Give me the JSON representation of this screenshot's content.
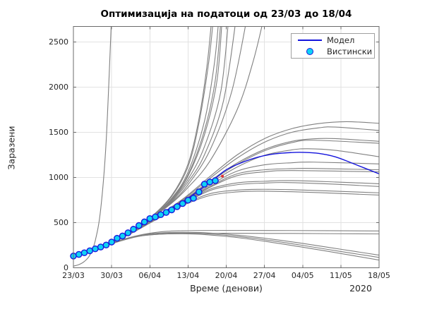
{
  "title": "Оптимизација на податоци од 23/03 до 18/04",
  "axes": {
    "xlabel": "Време (денови)",
    "ylabel": "Заразени",
    "year_label": "2020"
  },
  "legend": {
    "items": [
      {
        "label": "Модел",
        "swatch": "line"
      },
      {
        "label": "Вистински",
        "swatch": "marker"
      }
    ]
  },
  "colors": {
    "model_line": "#1414dd",
    "actual_fill": "#0fd2f5",
    "actual_edge": "#1a1add",
    "ensemble": "#808080",
    "grid": "#e2e2e2",
    "axis": "#6b6b6b",
    "text": "#262626",
    "highlight": "#e03131",
    "background": "#ffffff"
  },
  "chart_data": {
    "type": "line",
    "title": "Оптимизација на податоци од 23/03 до 18/04",
    "xlabel": "Време (денови)",
    "ylabel": "Заразени",
    "grid": true,
    "legend_position": "top-right",
    "x_unit": "days since 23/03/2020",
    "xlim_days": [
      0,
      56
    ],
    "ylim": [
      0,
      2670
    ],
    "x_ticks": [
      {
        "day": 0,
        "label": "23/03"
      },
      {
        "day": 7,
        "label": "30/03"
      },
      {
        "day": 14,
        "label": "06/04"
      },
      {
        "day": 21,
        "label": "13/04"
      },
      {
        "day": 28,
        "label": "20/04"
      },
      {
        "day": 35,
        "label": "27/04"
      },
      {
        "day": 42,
        "label": "04/05"
      },
      {
        "day": 49,
        "label": "11/05"
      },
      {
        "day": 56,
        "label": "18/05"
      }
    ],
    "y_ticks": [
      0,
      500,
      1000,
      1500,
      2000,
      2500
    ],
    "actual_points": {
      "name": "Вистински",
      "x_days": [
        0,
        1,
        2,
        3,
        4,
        5,
        6,
        7,
        8,
        9,
        10,
        11,
        12,
        13,
        14,
        15,
        16,
        17,
        18,
        19,
        20,
        21,
        22,
        23,
        24,
        25,
        26
      ],
      "values": [
        130,
        148,
        166,
        188,
        210,
        230,
        252,
        285,
        327,
        352,
        387,
        427,
        468,
        508,
        545,
        563,
        588,
        613,
        641,
        677,
        711,
        748,
        770,
        840,
        926,
        950,
        965
      ]
    },
    "model_series": {
      "name": "Модел",
      "points": [
        [
          0,
          130
        ],
        [
          4,
          205
        ],
        [
          8,
          320
        ],
        [
          12,
          455
        ],
        [
          16,
          600
        ],
        [
          20,
          730
        ],
        [
          23,
          855
        ],
        [
          26,
          990
        ],
        [
          28,
          1085
        ],
        [
          31,
          1168
        ],
        [
          34,
          1228
        ],
        [
          37,
          1262
        ],
        [
          40,
          1276
        ],
        [
          42,
          1278
        ],
        [
          45,
          1266
        ],
        [
          48,
          1228
        ],
        [
          51,
          1160
        ],
        [
          56,
          1040
        ]
      ]
    },
    "highlight_point": {
      "day": 27.3,
      "value": 1015
    },
    "ensemble_curves": [
      [
        [
          0,
          18
        ],
        [
          1,
          35
        ],
        [
          2,
          70
        ],
        [
          3,
          140
        ],
        [
          4,
          300
        ],
        [
          5,
          650
        ],
        [
          6,
          1400
        ],
        [
          7,
          2800
        ]
      ],
      [
        [
          0,
          130
        ],
        [
          5,
          232
        ],
        [
          10,
          375
        ],
        [
          14,
          550
        ],
        [
          18,
          800
        ],
        [
          21,
          1150
        ],
        [
          23,
          1650
        ],
        [
          24.5,
          2250
        ],
        [
          25.4,
          2800
        ]
      ],
      [
        [
          0,
          130
        ],
        [
          5,
          231
        ],
        [
          10,
          373
        ],
        [
          14,
          548
        ],
        [
          18,
          790
        ],
        [
          21,
          1120
        ],
        [
          23,
          1600
        ],
        [
          24.8,
          2280
        ],
        [
          25.7,
          2800
        ]
      ],
      [
        [
          0,
          130
        ],
        [
          5,
          230
        ],
        [
          10,
          371
        ],
        [
          14,
          545
        ],
        [
          18,
          770
        ],
        [
          21,
          1060
        ],
        [
          24,
          1620
        ],
        [
          25.8,
          2250
        ],
        [
          26.7,
          2800
        ]
      ],
      [
        [
          0,
          130
        ],
        [
          5,
          230
        ],
        [
          10,
          370
        ],
        [
          14,
          543
        ],
        [
          18,
          760
        ],
        [
          21,
          1030
        ],
        [
          24,
          1520
        ],
        [
          26,
          2080
        ],
        [
          27.1,
          2800
        ]
      ],
      [
        [
          0,
          130
        ],
        [
          5,
          229
        ],
        [
          10,
          369
        ],
        [
          14,
          542
        ],
        [
          18,
          755
        ],
        [
          21,
          1015
        ],
        [
          24,
          1470
        ],
        [
          26.3,
          2070
        ],
        [
          27.3,
          2800
        ]
      ],
      [
        [
          0,
          130
        ],
        [
          5,
          229
        ],
        [
          10,
          368
        ],
        [
          14,
          540
        ],
        [
          18,
          745
        ],
        [
          21,
          980
        ],
        [
          24,
          1340
        ],
        [
          27,
          1950
        ],
        [
          28.5,
          2800
        ]
      ],
      [
        [
          0,
          130
        ],
        [
          5,
          228
        ],
        [
          10,
          367
        ],
        [
          14,
          538
        ],
        [
          18,
          735
        ],
        [
          21,
          950
        ],
        [
          24,
          1250
        ],
        [
          27.5,
          1850
        ],
        [
          29.9,
          2800
        ]
      ],
      [
        [
          0,
          130
        ],
        [
          5,
          228
        ],
        [
          10,
          366
        ],
        [
          14,
          536
        ],
        [
          18,
          725
        ],
        [
          21,
          920
        ],
        [
          25,
          1300
        ],
        [
          29,
          1950
        ],
        [
          31.9,
          2800
        ]
      ],
      [
        [
          0,
          130
        ],
        [
          5,
          227
        ],
        [
          10,
          365
        ],
        [
          14,
          534
        ],
        [
          18,
          715
        ],
        [
          21,
          890
        ],
        [
          25,
          1180
        ],
        [
          30,
          1750
        ],
        [
          33,
          2300
        ],
        [
          35.2,
          2850
        ]
      ],
      [
        [
          0,
          130
        ],
        [
          5,
          235
        ],
        [
          10,
          380
        ],
        [
          15,
          560
        ],
        [
          20,
          760
        ],
        [
          25,
          1010
        ],
        [
          30,
          1250
        ],
        [
          35,
          1430
        ],
        [
          40,
          1540
        ],
        [
          45,
          1597
        ],
        [
          50,
          1618
        ],
        [
          56,
          1600
        ]
      ],
      [
        [
          0,
          130
        ],
        [
          5,
          233
        ],
        [
          10,
          377
        ],
        [
          15,
          555
        ],
        [
          20,
          750
        ],
        [
          25,
          990
        ],
        [
          30,
          1215
        ],
        [
          35,
          1390
        ],
        [
          40,
          1500
        ],
        [
          45,
          1550
        ],
        [
          48,
          1558
        ],
        [
          56,
          1520
        ]
      ],
      [
        [
          0,
          130
        ],
        [
          5,
          232
        ],
        [
          10,
          375
        ],
        [
          15,
          550
        ],
        [
          20,
          740
        ],
        [
          25,
          960
        ],
        [
          30,
          1160
        ],
        [
          35,
          1310
        ],
        [
          40,
          1400
        ],
        [
          44,
          1428
        ],
        [
          48,
          1430
        ],
        [
          56,
          1400
        ]
      ],
      [
        [
          0,
          130
        ],
        [
          5,
          231
        ],
        [
          10,
          373
        ],
        [
          15,
          548
        ],
        [
          20,
          735
        ],
        [
          25,
          950
        ],
        [
          30,
          1145
        ],
        [
          35,
          1295
        ],
        [
          40,
          1385
        ],
        [
          44,
          1412
        ],
        [
          56,
          1378
        ]
      ],
      [
        [
          0,
          130
        ],
        [
          5,
          230
        ],
        [
          10,
          372
        ],
        [
          15,
          545
        ],
        [
          20,
          728
        ],
        [
          25,
          935
        ],
        [
          30,
          1115
        ],
        [
          35,
          1245
        ],
        [
          40,
          1305
        ],
        [
          43,
          1318
        ],
        [
          48,
          1300
        ],
        [
          56,
          1230
        ]
      ],
      [
        [
          0,
          130
        ],
        [
          5,
          230
        ],
        [
          10,
          370
        ],
        [
          15,
          542
        ],
        [
          20,
          722
        ],
        [
          25,
          915
        ],
        [
          30,
          1070
        ],
        [
          35,
          1140
        ],
        [
          40,
          1163
        ],
        [
          44,
          1170
        ],
        [
          56,
          1150
        ]
      ],
      [
        [
          0,
          130
        ],
        [
          5,
          229
        ],
        [
          10,
          369
        ],
        [
          15,
          540
        ],
        [
          20,
          718
        ],
        [
          25,
          900
        ],
        [
          30,
          1040
        ],
        [
          35,
          1085
        ],
        [
          40,
          1098
        ],
        [
          44,
          1100
        ],
        [
          56,
          1085
        ]
      ],
      [
        [
          0,
          130
        ],
        [
          5,
          229
        ],
        [
          10,
          368
        ],
        [
          15,
          538
        ],
        [
          20,
          714
        ],
        [
          25,
          890
        ],
        [
          30,
          1020
        ],
        [
          35,
          1062
        ],
        [
          40,
          1077
        ],
        [
          56,
          1062
        ]
      ],
      [
        [
          0,
          130
        ],
        [
          5,
          228
        ],
        [
          10,
          366
        ],
        [
          15,
          535
        ],
        [
          20,
          708
        ],
        [
          25,
          870
        ],
        [
          30,
          940
        ],
        [
          35,
          958
        ],
        [
          40,
          965
        ],
        [
          48,
          950
        ],
        [
          56,
          930
        ]
      ],
      [
        [
          0,
          130
        ],
        [
          5,
          228
        ],
        [
          10,
          365
        ],
        [
          15,
          533
        ],
        [
          20,
          702
        ],
        [
          25,
          855
        ],
        [
          30,
          920
        ],
        [
          35,
          938
        ],
        [
          39,
          944
        ],
        [
          48,
          925
        ],
        [
          56,
          900
        ]
      ],
      [
        [
          0,
          130
        ],
        [
          5,
          227
        ],
        [
          10,
          363
        ],
        [
          15,
          530
        ],
        [
          20,
          695
        ],
        [
          25,
          820
        ],
        [
          30,
          860
        ],
        [
          34,
          869
        ],
        [
          40,
          865
        ],
        [
          48,
          848
        ],
        [
          56,
          830
        ]
      ],
      [
        [
          0,
          130
        ],
        [
          5,
          227
        ],
        [
          10,
          362
        ],
        [
          15,
          528
        ],
        [
          20,
          688
        ],
        [
          25,
          800
        ],
        [
          30,
          840
        ],
        [
          34,
          848
        ],
        [
          40,
          842
        ],
        [
          48,
          825
        ],
        [
          56,
          805
        ]
      ],
      [
        [
          0,
          130
        ],
        [
          4,
          200
        ],
        [
          8,
          290
        ],
        [
          12,
          360
        ],
        [
          16,
          398
        ],
        [
          20,
          410
        ],
        [
          28,
          414
        ],
        [
          40,
          412
        ],
        [
          56,
          408
        ]
      ],
      [
        [
          0,
          130
        ],
        [
          4,
          198
        ],
        [
          8,
          285
        ],
        [
          12,
          350
        ],
        [
          16,
          372
        ],
        [
          20,
          380
        ],
        [
          28,
          382
        ],
        [
          40,
          380
        ],
        [
          56,
          375
        ]
      ],
      [
        [
          0,
          130
        ],
        [
          4,
          202
        ],
        [
          8,
          295
        ],
        [
          12,
          358
        ],
        [
          16,
          385
        ],
        [
          20,
          392
        ],
        [
          24,
          388
        ],
        [
          30,
          362
        ],
        [
          36,
          320
        ],
        [
          42,
          270
        ],
        [
          49,
          205
        ],
        [
          56,
          140
        ]
      ],
      [
        [
          0,
          130
        ],
        [
          4,
          200
        ],
        [
          8,
          290
        ],
        [
          12,
          352
        ],
        [
          16,
          378
        ],
        [
          20,
          384
        ],
        [
          24,
          378
        ],
        [
          30,
          348
        ],
        [
          36,
          302
        ],
        [
          42,
          248
        ],
        [
          49,
          180
        ],
        [
          56,
          115
        ]
      ],
      [
        [
          0,
          130
        ],
        [
          4,
          198
        ],
        [
          8,
          285
        ],
        [
          12,
          348
        ],
        [
          16,
          372
        ],
        [
          20,
          376
        ],
        [
          24,
          368
        ],
        [
          30,
          335
        ],
        [
          36,
          285
        ],
        [
          42,
          228
        ],
        [
          49,
          158
        ],
        [
          56,
          85
        ]
      ]
    ]
  }
}
